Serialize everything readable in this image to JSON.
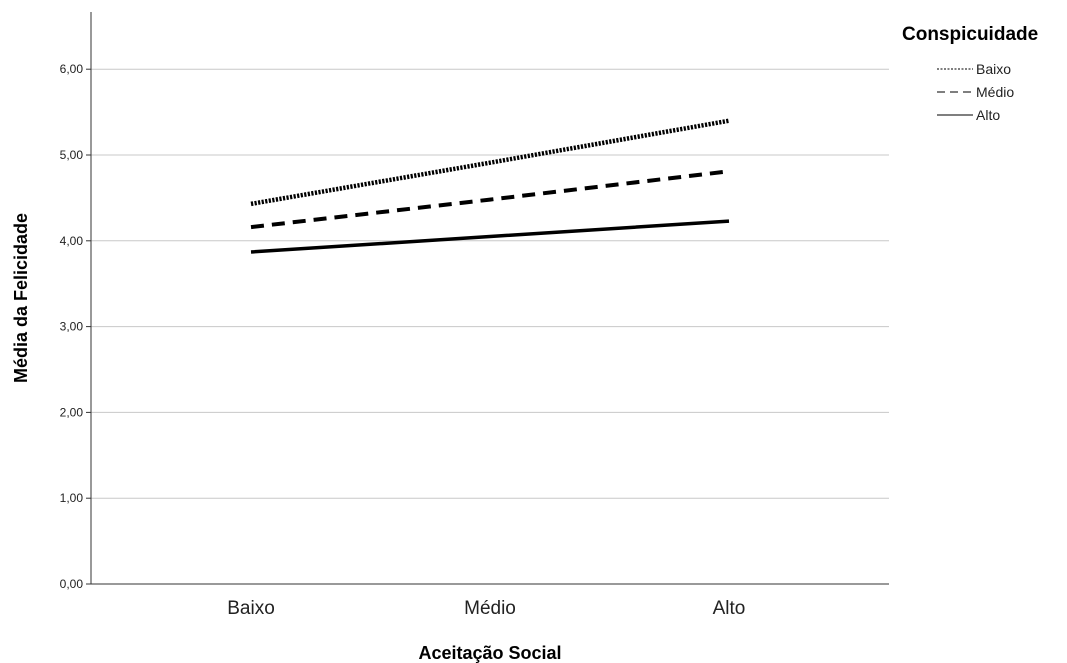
{
  "chart_data": {
    "type": "line",
    "xlabel": "Aceitação Social",
    "ylabel": "Média da Felicidade",
    "categories": [
      "Baixo",
      "Médio",
      "Alto"
    ],
    "ylim": [
      0,
      6.6
    ],
    "yticks": [
      "0,00",
      "1,00",
      "2,00",
      "3,00",
      "4,00",
      "5,00",
      "6,00"
    ],
    "grid": true,
    "legend": {
      "title": "Conspicuidade",
      "position": "top-right"
    },
    "series": [
      {
        "name": "Baixo",
        "values": [
          4.43,
          4.91,
          5.4
        ],
        "style": "dotted"
      },
      {
        "name": "Médio",
        "values": [
          4.16,
          4.48,
          4.81
        ],
        "style": "dashed"
      },
      {
        "name": "Alto",
        "values": [
          3.87,
          4.05,
          4.23
        ],
        "style": "solid"
      }
    ]
  }
}
